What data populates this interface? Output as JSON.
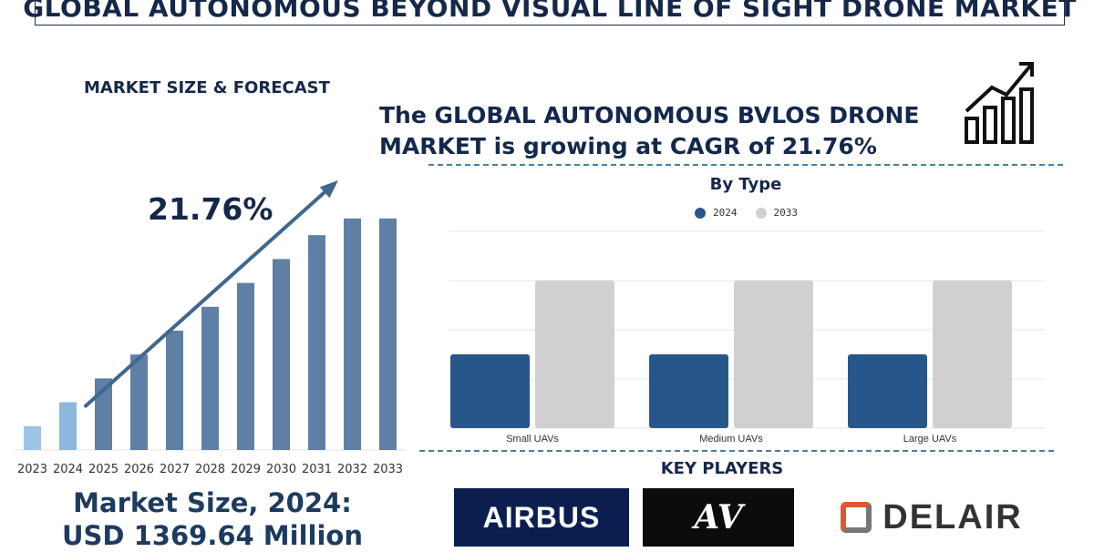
{
  "header": {
    "title": "GLOBAL AUTONOMOUS BEYOND VISUAL LINE OF SIGHT DRONE MARKET"
  },
  "left": {
    "section_label": "MARKET SIZE & FORECAST",
    "cagr_value": "21.76%",
    "market_size_line1": "Market Size, 2024:",
    "market_size_line2": "USD 1369.64 Million"
  },
  "headline": {
    "line1": "The GLOBAL AUTONOMOUS BVLOS DRONE",
    "line2": "MARKET is growing at CAGR of 21.76%"
  },
  "colors": {
    "bar_2023": "#9dc3e6",
    "bar_2024": "#8db8dd",
    "bar_forecast": "#5f7fa5",
    "arrow": "#3f6790",
    "series_2024": "#27578a",
    "series_2033": "#d0d0d0",
    "dash": "#4a7ea6"
  },
  "chart_data": [
    {
      "type": "bar",
      "categories": [
        "2023",
        "2024",
        "2025",
        "2026",
        "2027",
        "2028",
        "2029",
        "2030",
        "2031",
        "2032",
        "2033"
      ],
      "values": [
        1.0,
        2.0,
        3.0,
        4.0,
        5.0,
        6.0,
        7.0,
        8.0,
        9.0,
        9.7,
        9.7
      ],
      "title": "",
      "xlabel": "",
      "ylabel": "",
      "ylim": [
        0,
        10
      ],
      "grid": false,
      "annotation": "21.76%"
    },
    {
      "type": "bar",
      "title": "By Type",
      "categories": [
        "Small UAVs",
        "Medium UAVs",
        "Large UAVs"
      ],
      "series": [
        {
          "name": "2024",
          "values": [
            3.0,
            3.0,
            3.0
          ]
        },
        {
          "name": "2033",
          "values": [
            6.0,
            6.0,
            6.0
          ]
        }
      ],
      "ylim": [
        0,
        8
      ],
      "grid": true,
      "legend": "top-center"
    }
  ],
  "key_players": {
    "title": "KEY PLAYERS",
    "logos": [
      {
        "name": "AIRBUS",
        "icon": "airbus-logo"
      },
      {
        "name": "AV",
        "icon": "aerovironment-logo"
      },
      {
        "name": "DELAIR",
        "icon": "delair-logo"
      }
    ]
  },
  "icons": {
    "trend": "bar-chart-trend-icon"
  }
}
